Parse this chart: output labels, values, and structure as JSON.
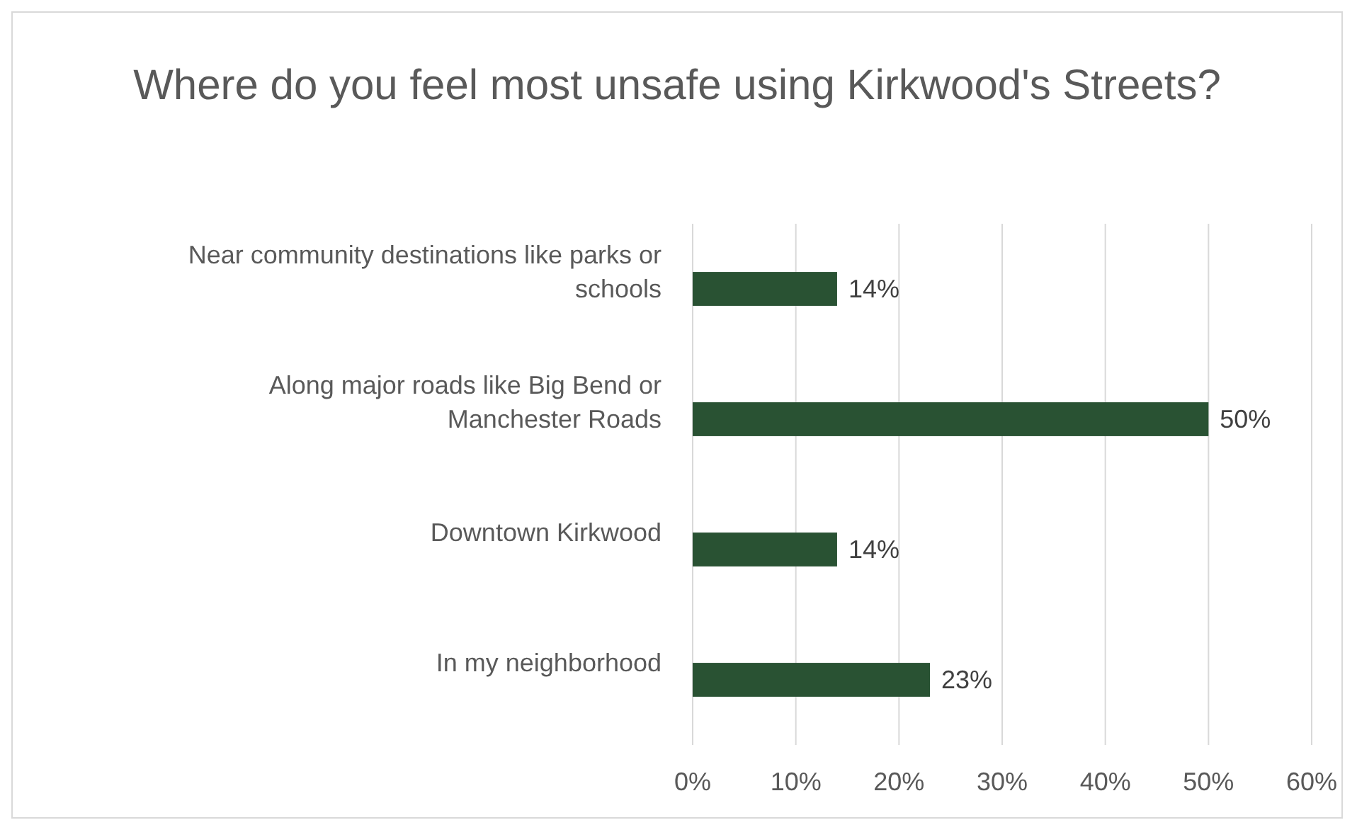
{
  "chart_data": {
    "type": "bar",
    "orientation": "horizontal",
    "title": "Where do you feel most unsafe using Kirkwood's Streets?",
    "categories": [
      "Near community destinations like parks or schools",
      "Along major roads like Big Bend or Manchester Roads",
      "Downtown Kirkwood",
      "In my neighborhood"
    ],
    "values": [
      14,
      50,
      14,
      23
    ],
    "value_labels": [
      "14%",
      "50%",
      "14%",
      "23%"
    ],
    "color": "#295233",
    "xlim": [
      0,
      60
    ],
    "xticks": [
      {
        "value": 0,
        "label": "0%"
      },
      {
        "value": 10,
        "label": "10%"
      },
      {
        "value": 20,
        "label": "20%"
      },
      {
        "value": 30,
        "label": "30%"
      },
      {
        "value": 40,
        "label": "40%"
      },
      {
        "value": 50,
        "label": "50%"
      },
      {
        "value": 60,
        "label": "60%"
      }
    ],
    "grid": "x"
  }
}
